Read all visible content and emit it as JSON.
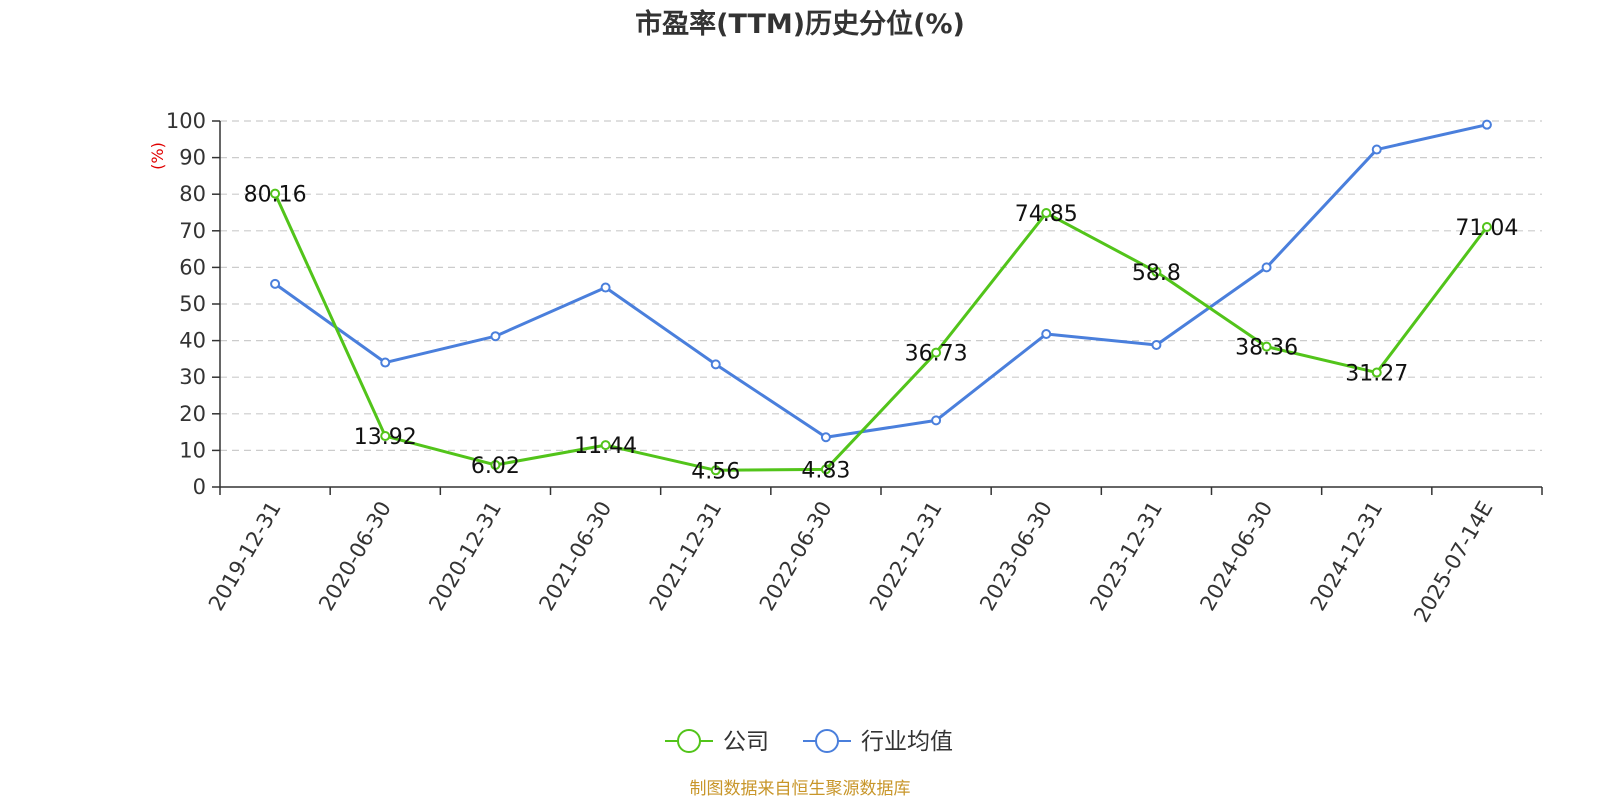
{
  "chart_data": {
    "type": "line",
    "title": "市盈率(TTM)历史分位(%)",
    "ylabel": "(%)",
    "xlabel": "",
    "ylim": [
      0,
      100
    ],
    "yticks": [
      0,
      10,
      20,
      30,
      40,
      50,
      60,
      70,
      80,
      90,
      100
    ],
    "grid": true,
    "legend": "bottom-center",
    "categories": [
      "2019-12-31",
      "2020-06-30",
      "2020-12-31",
      "2021-06-30",
      "2021-12-31",
      "2022-06-30",
      "2022-12-31",
      "2023-06-30",
      "2023-12-31",
      "2024-06-30",
      "2024-12-31",
      "2025-07-14E"
    ],
    "series": [
      {
        "name": "公司",
        "color": "#52c41a",
        "values": [
          80.16,
          13.92,
          6.02,
          11.44,
          4.56,
          4.83,
          36.73,
          74.85,
          58.8,
          38.36,
          31.27,
          71.04
        ],
        "labels": [
          "80.16",
          "13.92",
          "6.02",
          "11.44",
          "4.56",
          "4.83",
          "36.73",
          "74.85",
          "58.8",
          "38.36",
          "31.27",
          "71.04"
        ],
        "show_labels": true
      },
      {
        "name": "行业均值",
        "color": "#4a7fdc",
        "values": [
          55.5,
          34.0,
          41.2,
          54.5,
          33.5,
          13.6,
          18.2,
          41.8,
          38.8,
          60.0,
          92.2,
          99.0
        ],
        "show_labels": false
      }
    ],
    "source": "制图数据来自恒生聚源数据库"
  }
}
